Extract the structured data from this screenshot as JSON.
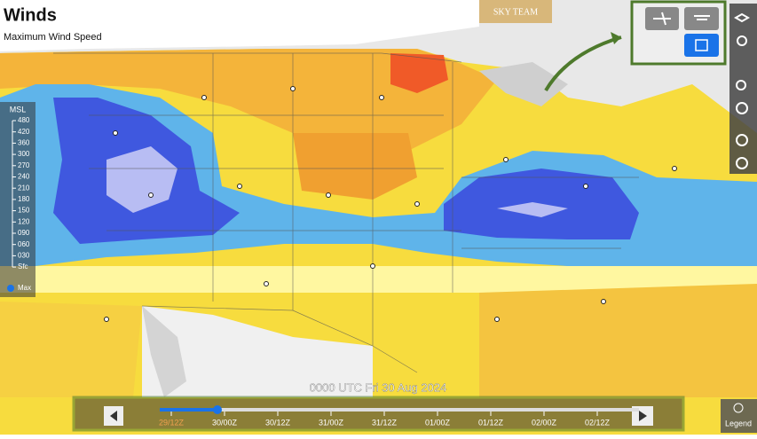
{
  "header": {
    "title": "Winds",
    "subtitle": "Maximum Wind Speed"
  },
  "logo": "SKY TEAM",
  "altitude_legend": {
    "title": "MSL",
    "levels": [
      "480",
      "420",
      "360",
      "300",
      "270",
      "240",
      "210",
      "180",
      "150",
      "120",
      "090",
      "060",
      "030",
      "Sfc"
    ],
    "max": "Max"
  },
  "timestamp": "0000 UTC Fri 30 Aug 2024",
  "timeline": {
    "labels": [
      "29/12Z",
      "30/00Z",
      "30/12Z",
      "31/00Z",
      "31/12Z",
      "01/00Z",
      "01/12Z",
      "02/00Z",
      "02/12Z"
    ]
  },
  "legend_button": "Legend"
}
